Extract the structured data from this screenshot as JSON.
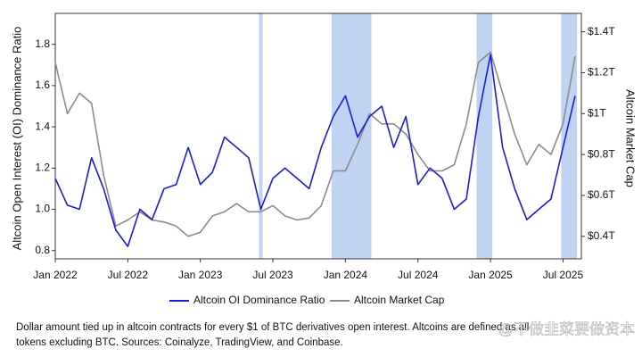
{
  "chart_data": {
    "type": "line",
    "y_label": "Altcoin Open Interest (OI) Dominance Ratio",
    "y2_label": "Altcoin Market Cap",
    "x": [
      "2022-01",
      "2022-02",
      "2022-03",
      "2022-04",
      "2022-05",
      "2022-06",
      "2022-07",
      "2022-08",
      "2022-09",
      "2022-10",
      "2022-11",
      "2022-12",
      "2023-01",
      "2023-02",
      "2023-03",
      "2023-04",
      "2023-05",
      "2023-06",
      "2023-07",
      "2023-08",
      "2023-09",
      "2023-10",
      "2023-11",
      "2023-12",
      "2024-01",
      "2024-02",
      "2024-03",
      "2024-04",
      "2024-05",
      "2024-06",
      "2024-07",
      "2024-08",
      "2024-09",
      "2024-10",
      "2024-11",
      "2024-12",
      "2025-01",
      "2025-02",
      "2025-03",
      "2025-04",
      "2025-05",
      "2025-06",
      "2025-07",
      "2025-08"
    ],
    "xlim": [
      "2022-01",
      "2025-08"
    ],
    "xticks": [
      {
        "value": "2022-01",
        "label": "Jan 2022"
      },
      {
        "value": "2022-07",
        "label": "Jul 2022"
      },
      {
        "value": "2023-01",
        "label": "Jan 2023"
      },
      {
        "value": "2023-07",
        "label": "Jul 2023"
      },
      {
        "value": "2024-01",
        "label": "Jan 2024"
      },
      {
        "value": "2024-07",
        "label": "Jul 2024"
      },
      {
        "value": "2025-01",
        "label": "Jan 2025"
      },
      {
        "value": "2025-07",
        "label": "Jul 2025"
      }
    ],
    "ylim": [
      0.76,
      1.95
    ],
    "yticks": [
      0.8,
      {
        "value": 1,
        "label": "1.0"
      },
      1.2,
      1.4,
      1.6,
      1.8
    ],
    "y2lim": [
      0.29,
      1.49
    ],
    "y2ticks": [
      {
        "value": 0.4,
        "label": "$0.4T"
      },
      {
        "value": 0.6,
        "label": "$0.6T"
      },
      {
        "value": 0.8,
        "label": "$0.8T"
      },
      {
        "value": 1,
        "label": "$1T"
      },
      {
        "value": 1.2,
        "label": "$1.2T"
      },
      {
        "value": 1.4,
        "label": "$1.4T"
      }
    ],
    "shaded_periods": [
      [
        "2023-06",
        "2023-06"
      ],
      [
        "2023-12",
        "2024-03"
      ],
      [
        "2024-12",
        "2025-01"
      ],
      [
        "2025-07",
        "2025-08"
      ]
    ],
    "shade_color": "#a9c4ee",
    "series": [
      {
        "name": "Altcoin OI Dominance Ratio",
        "color": "#1c1cd4",
        "values": [
          1.15,
          1.02,
          1.0,
          1.25,
          1.1,
          0.9,
          0.82,
          1.0,
          0.95,
          1.1,
          1.12,
          1.3,
          1.12,
          1.18,
          1.35,
          1.3,
          1.25,
          1.0,
          1.15,
          1.2,
          1.15,
          1.1,
          1.3,
          1.45,
          1.55,
          1.35,
          1.45,
          1.5,
          1.3,
          1.45,
          1.12,
          1.2,
          1.15,
          1.0,
          1.05,
          1.45,
          1.75,
          1.3,
          1.1,
          0.95,
          1.0,
          1.05,
          1.3,
          1.55
        ]
      },
      {
        "name": "Altcoin Market Cap",
        "color": "#8c8c8c",
        "axis": "y2",
        "values": [
          1.25,
          1.0,
          1.1,
          1.05,
          0.7,
          0.45,
          0.48,
          0.52,
          0.48,
          0.47,
          0.45,
          0.4,
          0.42,
          0.5,
          0.52,
          0.56,
          0.52,
          0.52,
          0.55,
          0.5,
          0.48,
          0.49,
          0.55,
          0.72,
          0.72,
          0.85,
          1.0,
          0.95,
          0.95,
          0.9,
          0.8,
          0.72,
          0.72,
          0.75,
          0.95,
          1.25,
          1.3,
          1.1,
          0.9,
          0.75,
          0.85,
          0.8,
          0.95,
          1.28
        ]
      }
    ],
    "caption": [
      "Dollar amount tied up in altcoin contracts for every $1 of BTC derivatives open interest. Altcoins are defined as all",
      "tokens excluding BTC. Sources: Coinalyze, TradingView, and Coinbase."
    ],
    "watermark": "@不做韭菜要做资本"
  }
}
